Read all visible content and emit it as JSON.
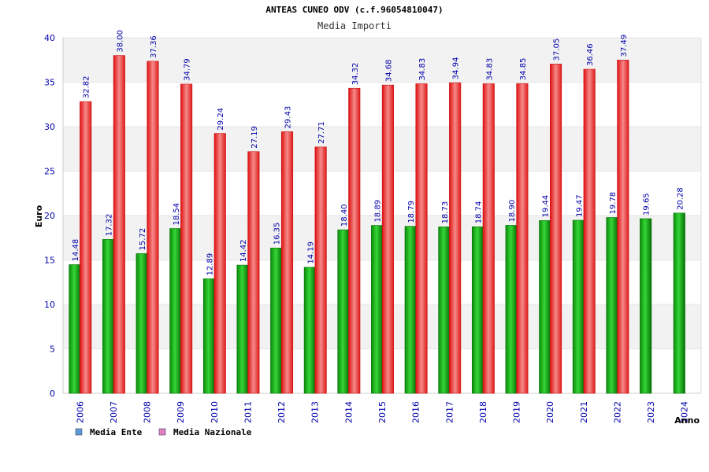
{
  "chart_data": {
    "type": "bar",
    "title": "ANTEAS CUNEO ODV (c.f.96054810047)",
    "subtitle": "Media Importi",
    "ylabel": "Euro",
    "xlabel": "Anno",
    "ylim": [
      0,
      40
    ],
    "yticks": [
      0,
      5,
      10,
      15,
      20,
      25,
      30,
      35,
      40
    ],
    "categories": [
      "2006",
      "2007",
      "2008",
      "2009",
      "2010",
      "2011",
      "2012",
      "2013",
      "2014",
      "2015",
      "2016",
      "2017",
      "2018",
      "2019",
      "2020",
      "2021",
      "2022",
      "2023",
      "2024"
    ],
    "series": [
      {
        "name": "Media Ente",
        "legend_color": "#5b9bd5",
        "values": [
          14.48,
          17.32,
          15.72,
          18.54,
          12.89,
          14.42,
          16.35,
          14.19,
          18.4,
          18.89,
          18.79,
          18.73,
          18.74,
          18.9,
          19.44,
          19.47,
          19.78,
          19.65,
          20.28
        ],
        "labels": [
          "14.48",
          "17.32",
          "15.72",
          "18.54",
          "12.89",
          "14.42",
          "16.35",
          "14.19",
          "18.40",
          "18.89",
          "18.79",
          "18.73",
          "18.74",
          "18.90",
          "19.44",
          "19.47",
          "19.78",
          "19.65",
          "20.28"
        ]
      },
      {
        "name": "Media Nazionale",
        "legend_color": "#e27fbe",
        "values": [
          32.82,
          38.0,
          37.36,
          34.79,
          29.24,
          27.19,
          29.43,
          27.71,
          34.32,
          34.68,
          34.83,
          34.94,
          34.83,
          34.85,
          37.05,
          36.46,
          37.49,
          null,
          null
        ],
        "labels": [
          "32.82",
          "38.00",
          "37.36",
          "34.79",
          "29.24",
          "27.19",
          "29.43",
          "27.71",
          "34.32",
          "34.68",
          "34.83",
          "34.94",
          "34.83",
          "34.85",
          "37.05",
          "36.46",
          "37.49",
          null,
          null
        ]
      }
    ],
    "grid": true,
    "legend_position": "bottom-left"
  }
}
